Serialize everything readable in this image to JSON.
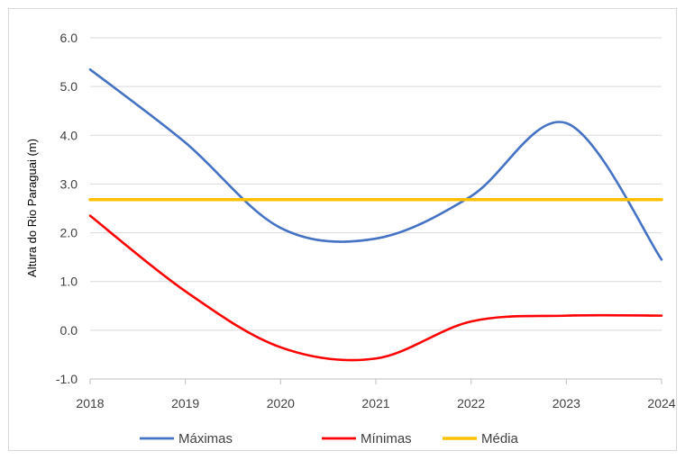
{
  "chart_data": {
    "type": "line",
    "xlabel": "",
    "ylabel": "Altura do Rio Paraguai (m)",
    "x": [
      2018,
      2019,
      2020,
      2021,
      2022,
      2023,
      2024
    ],
    "x_tick_labels": [
      "2018",
      "2019",
      "2020",
      "2021",
      "2022",
      "2023",
      "2024"
    ],
    "y_tick_values": [
      -1.0,
      0.0,
      1.0,
      2.0,
      3.0,
      4.0,
      5.0,
      6.0
    ],
    "y_tick_labels": [
      "-1.0",
      "0.0",
      "1.0",
      "2.0",
      "3.0",
      "4.0",
      "5.0",
      "6.0"
    ],
    "ylim": [
      -1.0,
      6.0
    ],
    "grid": true,
    "smooth": true,
    "legend_position": "bottom",
    "series": [
      {
        "name": "Máximas",
        "color": "#4472c4",
        "values": [
          5.35,
          3.85,
          2.1,
          1.88,
          2.75,
          4.25,
          1.45
        ]
      },
      {
        "name": "Mínimas",
        "color": "#ff0000",
        "values": [
          2.35,
          0.8,
          -0.35,
          -0.58,
          0.18,
          0.3,
          0.3
        ]
      },
      {
        "name": "Média",
        "color": "#ffc000",
        "values": [
          2.68,
          2.68,
          2.68,
          2.68,
          2.68,
          2.68,
          2.68
        ]
      }
    ]
  }
}
